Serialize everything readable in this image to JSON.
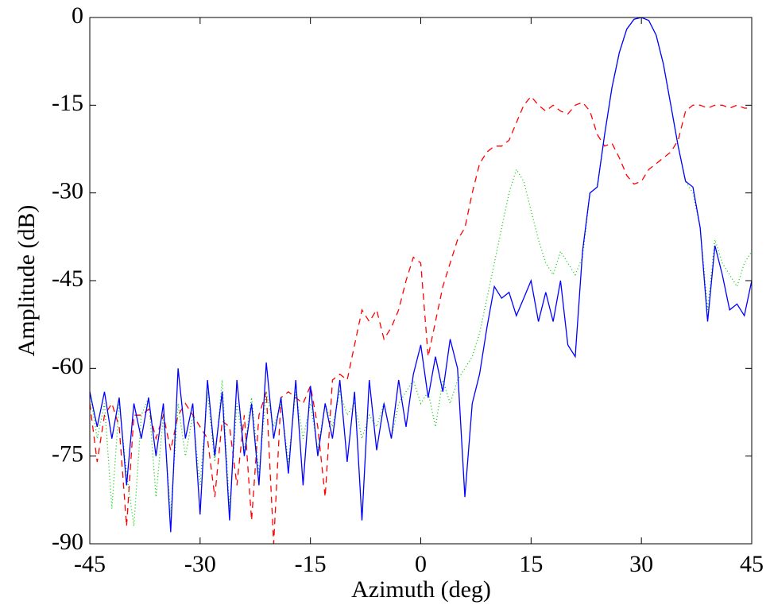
{
  "chart_data": {
    "type": "line",
    "xlabel": "Azimuth (deg)",
    "ylabel": "Amplitude (dB)",
    "x": [
      -45,
      -44,
      -43,
      -42,
      -41,
      -40,
      -39,
      -38,
      -37,
      -36,
      -35,
      -34,
      -33,
      -32,
      -31,
      -30,
      -29,
      -28,
      -27,
      -26,
      -25,
      -24,
      -23,
      -22,
      -21,
      -20,
      -19,
      -18,
      -17,
      -16,
      -15,
      -14,
      -13,
      -12,
      -11,
      -10,
      -9,
      -8,
      -7,
      -6,
      -5,
      -4,
      -3,
      -2,
      -1,
      0,
      1,
      2,
      3,
      4,
      5,
      6,
      7,
      8,
      9,
      10,
      11,
      12,
      13,
      14,
      15,
      16,
      17,
      18,
      19,
      20,
      21,
      22,
      23,
      24,
      25,
      26,
      27,
      28,
      29,
      30,
      31,
      32,
      33,
      34,
      35,
      36,
      37,
      38,
      39,
      40,
      41,
      42,
      43,
      44,
      45
    ],
    "series": [
      {
        "color": "#ff0000",
        "dash": "8,6",
        "values": [
          -66,
          -76,
          -68,
          -66,
          -70,
          -87,
          -68,
          -68,
          -67,
          -72,
          -68,
          -74,
          -68,
          -66,
          -68,
          -70,
          -72,
          -82,
          -69,
          -70,
          -80,
          -68,
          -86,
          -68,
          -64,
          -90,
          -65,
          -64,
          -65,
          -66,
          -63,
          -70,
          -82,
          -62,
          -61,
          -62,
          -56,
          -50,
          -52,
          -50,
          -55,
          -53,
          -50,
          -45,
          -41,
          -42,
          -58,
          -52,
          -46,
          -42,
          -38,
          -36,
          -30,
          -25,
          -23,
          -22,
          -22,
          -21,
          -18,
          -15,
          -13.5,
          -15,
          -16,
          -15,
          -16,
          -16.5,
          -15,
          -14.5,
          -16,
          -20,
          -22,
          -21.5,
          -24,
          -27,
          -28.5,
          -28,
          -26,
          -25,
          -24,
          -23,
          -21,
          -16,
          -15,
          -15,
          -15.5,
          -15,
          -15,
          -15.5,
          -15,
          -15.5,
          -15.5
        ]
      },
      {
        "color": "#00cc00",
        "dash": "1,3",
        "values": [
          -64,
          -72,
          -66,
          -84,
          -66,
          -78,
          -87,
          -68,
          -65,
          -82,
          -68,
          -85,
          -66,
          -75,
          -68,
          -80,
          -64,
          -76,
          -62,
          -84,
          -66,
          -74,
          -65,
          -78,
          -64,
          -70,
          -66,
          -76,
          -64,
          -72,
          -66,
          -74,
          -66,
          -70,
          -64,
          -68,
          -66,
          -72,
          -68,
          -70,
          -66,
          -72,
          -66,
          -64,
          -62,
          -66,
          -64,
          -70,
          -62,
          -66,
          -62,
          -60,
          -58,
          -54,
          -48,
          -42,
          -36,
          -30,
          -26,
          -28,
          -33,
          -38,
          -42,
          -44,
          -40,
          -42,
          -44,
          -41,
          -30,
          -29,
          -20,
          -12,
          -6,
          -2,
          -0.3,
          0,
          -0.5,
          -3,
          -8,
          -15,
          -22,
          -28,
          -30,
          -36,
          -50,
          -38,
          -42,
          -44,
          -46,
          -42,
          -40
        ]
      },
      {
        "color": "#0000ff",
        "dash": "none",
        "values": [
          -64,
          -70,
          -64,
          -72,
          -65,
          -80,
          -66,
          -72,
          -65,
          -75,
          -66,
          -88,
          -60,
          -72,
          -66,
          -85,
          -62,
          -75,
          -64,
          -86,
          -62,
          -75,
          -66,
          -80,
          -59,
          -72,
          -65,
          -78,
          -62,
          -80,
          -63,
          -75,
          -66,
          -72,
          -62,
          -76,
          -64,
          -86,
          -62,
          -74,
          -66,
          -72,
          -62,
          -70,
          -61,
          -56,
          -65,
          -58,
          -64,
          -55,
          -60,
          -82,
          -66,
          -61,
          -53,
          -46,
          -48,
          -47,
          -51,
          -48,
          -45,
          -52,
          -47,
          -52,
          -45,
          -56,
          -58,
          -40,
          -30,
          -29,
          -20,
          -12,
          -6,
          -2,
          -0.3,
          0,
          -0.5,
          -3,
          -8,
          -15,
          -22,
          -28,
          -29,
          -36,
          -52,
          -39,
          -44,
          -50,
          -49,
          -51,
          -45
        ]
      }
    ],
    "xlim": [
      -45,
      45
    ],
    "ylim": [
      -90,
      0
    ],
    "xticks": [
      -45,
      -30,
      -15,
      0,
      15,
      30,
      45
    ],
    "yticks": [
      -90,
      -75,
      -60,
      -45,
      -30,
      -15,
      0
    ]
  }
}
